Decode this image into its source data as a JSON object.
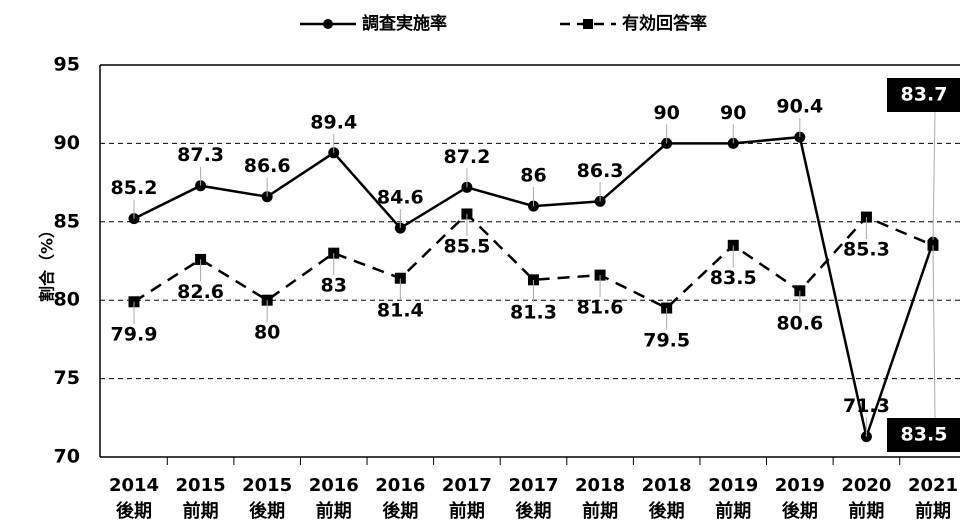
{
  "chart_data": {
    "type": "line",
    "y_label": "割合（%）",
    "categories": [
      "2014\n後期",
      "2015\n前期",
      "2015\n後期",
      "2016\n前期",
      "2016\n後期",
      "2017\n前期",
      "2017\n後期",
      "2018\n前期",
      "2018\n後期",
      "2019\n前期",
      "2019\n後期",
      "2020\n前期",
      "2021\n前期"
    ],
    "series": [
      {
        "name": "調査実施率",
        "color": "#000000",
        "dash": false,
        "marker": "circle",
        "values": [
          85.2,
          87.3,
          86.6,
          89.4,
          84.6,
          87.2,
          86,
          86.3,
          90,
          90,
          90.4,
          71.3,
          83.7
        ]
      },
      {
        "name": "有効回答率",
        "color": "#000000",
        "dash": true,
        "marker": "square",
        "values": [
          79.9,
          82.6,
          80,
          83,
          81.4,
          85.5,
          81.3,
          81.6,
          79.5,
          83.5,
          80.6,
          85.3,
          83.5
        ]
      }
    ],
    "ylim": [
      70,
      95
    ],
    "yticks": [
      70,
      75,
      80,
      85,
      90,
      95
    ],
    "grid": true,
    "legend": "top"
  }
}
